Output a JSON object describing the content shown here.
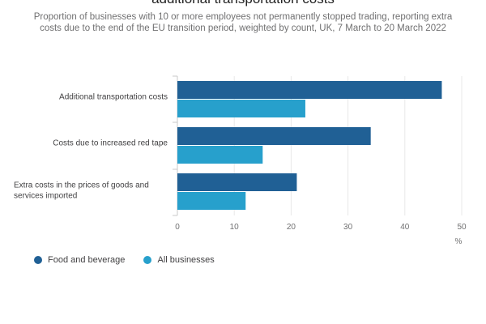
{
  "chart_data": {
    "type": "bar",
    "orientation": "horizontal",
    "title": "additional transportation costs",
    "subtitle": "Proportion of businesses with 10 or more employees not permanently stopped trading, reporting extra costs due to the end of the EU transition period, weighted by count, UK, 7 March to 20 March 2022",
    "categories": [
      [
        "Additional transportation costs"
      ],
      [
        "Costs due to increased red tape"
      ],
      [
        "Extra costs in the prices of goods and",
        "services imported"
      ]
    ],
    "series": [
      {
        "name": "Food and beverage",
        "color": "#206095",
        "values": [
          46.5,
          34,
          21
        ]
      },
      {
        "name": "All businesses",
        "color": "#27a0cc",
        "values": [
          22.5,
          15,
          12
        ]
      }
    ],
    "xlim": [
      0,
      50
    ],
    "xticks": [
      0,
      10,
      20,
      30,
      40,
      50
    ],
    "xlabel": "%",
    "grid": true,
    "legend": "bottom-left"
  }
}
